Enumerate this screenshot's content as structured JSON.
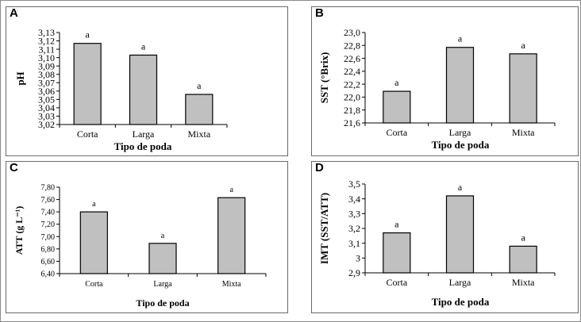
{
  "chart_data": [
    {
      "panel": "A",
      "type": "bar",
      "categories": [
        "Corta",
        "Larga",
        "Mixta"
      ],
      "values": [
        3.117,
        3.103,
        3.056
      ],
      "bar_labels": [
        "a",
        "a",
        "a"
      ],
      "xlabel": "Tipo de poda",
      "ylabel": "pH",
      "ylim": [
        3.02,
        3.13
      ],
      "yticks": [
        "3,02",
        "3,03",
        "3,04",
        "3,05",
        "3,06",
        "3,07",
        "3,08",
        "3,09",
        "3,10",
        "3,11",
        "3,12",
        "3,13"
      ],
      "bar_color": "#c0c0c0"
    },
    {
      "panel": "B",
      "type": "bar",
      "categories": [
        "Corta",
        "Larga",
        "Mixta"
      ],
      "values": [
        22.09,
        22.77,
        22.67
      ],
      "bar_labels": [
        "a",
        "a",
        "a"
      ],
      "xlabel": "Tipo de poda",
      "ylabel": "SST (°Brix)",
      "ylim": [
        21.6,
        23.0
      ],
      "yticks": [
        "21,6",
        "21,8",
        "22,0",
        "22,2",
        "22,4",
        "22,6",
        "22,8",
        "23,0"
      ],
      "bar_color": "#c0c0c0"
    },
    {
      "panel": "C",
      "type": "bar",
      "categories": [
        "Corta",
        "Larga",
        "Mixta"
      ],
      "values": [
        7.4,
        6.89,
        7.63
      ],
      "bar_labels": [
        "a",
        "a",
        "a"
      ],
      "xlabel": "Tipo de poda",
      "ylabel": "ATT (g L⁻¹)",
      "ylim": [
        6.4,
        7.8
      ],
      "yticks": [
        "6,40",
        "6,60",
        "6,80",
        "7,00",
        "7,20",
        "7,40",
        "7,60",
        "7,80"
      ],
      "bar_color": "#c0c0c0"
    },
    {
      "panel": "D",
      "type": "bar",
      "categories": [
        "Corta",
        "Larga",
        "Mixta"
      ],
      "values": [
        3.17,
        3.42,
        3.08
      ],
      "bar_labels": [
        "a",
        "a",
        "a"
      ],
      "xlabel": "Tipo de poda",
      "ylabel": "IMT (SST/ATT)",
      "ylim": [
        2.9,
        3.5
      ],
      "yticks": [
        "2,9",
        "3",
        "3,1",
        "3,2",
        "3,3",
        "3,4",
        "3,5"
      ],
      "bar_color": "#c0c0c0"
    }
  ]
}
